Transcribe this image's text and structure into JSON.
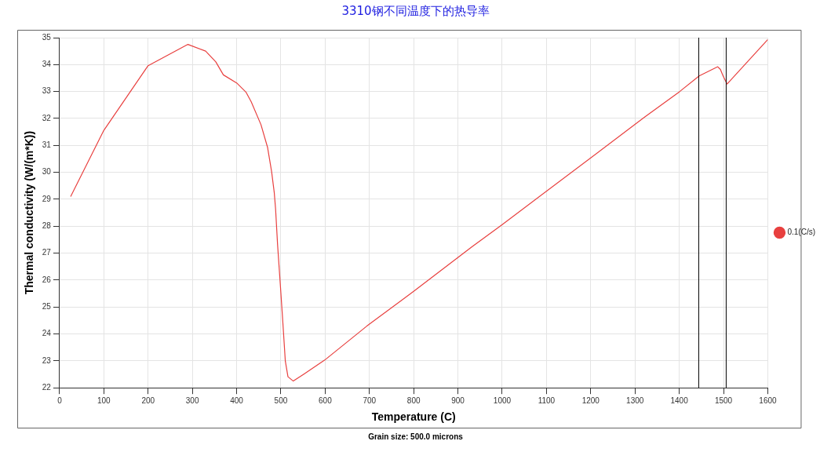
{
  "chart_data": {
    "type": "line",
    "title": "3310钢不同温度下的热导率",
    "xlabel": "Temperature (C)",
    "ylabel": "Thermal conductivity (W/(m*K))",
    "annotations": [
      "Grain size: 500.0 microns"
    ],
    "series": [
      {
        "name": "0.1(C/s)",
        "color": "#e8403f",
        "x": [
          25,
          100,
          200,
          290,
          330,
          353,
          370,
          400,
          421,
          433,
          455,
          470,
          479,
          485,
          488,
          492.5,
          498.5,
          504.4,
          510,
          516,
          528,
          552,
          599,
          694,
          800.5,
          931,
          1000,
          1321,
          1401,
          1445,
          1487,
          1493,
          1499,
          1508,
          1600
        ],
        "values": [
          29.1,
          31.56,
          33.96,
          34.75,
          34.5,
          34.1,
          33.62,
          33.32,
          32.98,
          32.62,
          31.77,
          30.92,
          30.03,
          29.25,
          28.64,
          27.32,
          25.88,
          24.43,
          22.99,
          22.41,
          22.25,
          22.51,
          23.03,
          24.29,
          25.59,
          27.23,
          28.06,
          32.04,
          33.0,
          33.58,
          33.92,
          33.82,
          33.58,
          33.28,
          34.93
        ]
      }
    ],
    "xlim": [
      0,
      1600
    ],
    "xticks": [
      0,
      100,
      200,
      300,
      400,
      500,
      600,
      700,
      800,
      900,
      1000,
      1100,
      1200,
      1300,
      1400,
      1500,
      1600
    ],
    "ylim": [
      22,
      35
    ],
    "yticks": [
      22,
      23,
      24,
      25,
      26,
      27,
      28,
      29,
      30,
      31,
      32,
      33,
      34,
      35
    ],
    "ref_lines": [
      {
        "axis": "x",
        "value": 1444,
        "color": "#000000"
      },
      {
        "axis": "x",
        "value": 1506,
        "color": "#000000"
      }
    ],
    "grid": true,
    "legend": "right",
    "marker": "none",
    "line_style": "solid"
  }
}
